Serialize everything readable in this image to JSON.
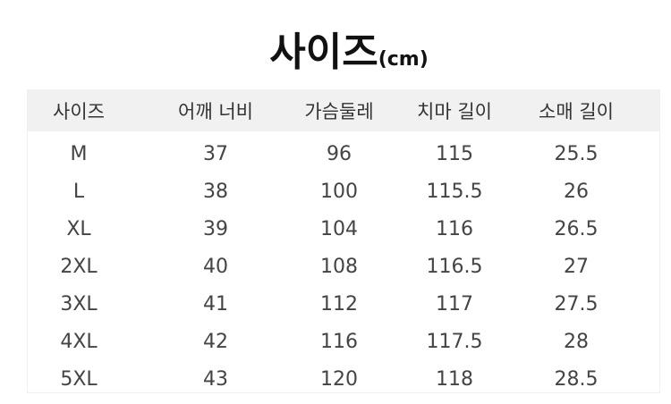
{
  "title": {
    "main": "사이즈",
    "unit": "(cm)"
  },
  "table": {
    "headers": [
      "사이즈",
      "어깨 너비",
      "가슴둘레",
      "치마 길이",
      "소매 길이"
    ],
    "rows": [
      [
        "M",
        "37",
        "96",
        "115",
        "25.5"
      ],
      [
        "L",
        "38",
        "100",
        "115.5",
        "26"
      ],
      [
        "XL",
        "39",
        "104",
        "116",
        "26.5"
      ],
      [
        "2XL",
        "40",
        "108",
        "116.5",
        "27"
      ],
      [
        "3XL",
        "41",
        "112",
        "117",
        "27.5"
      ],
      [
        "4XL",
        "42",
        "116",
        "117.5",
        "28"
      ],
      [
        "5XL",
        "43",
        "120",
        "118",
        "28.5"
      ]
    ]
  }
}
